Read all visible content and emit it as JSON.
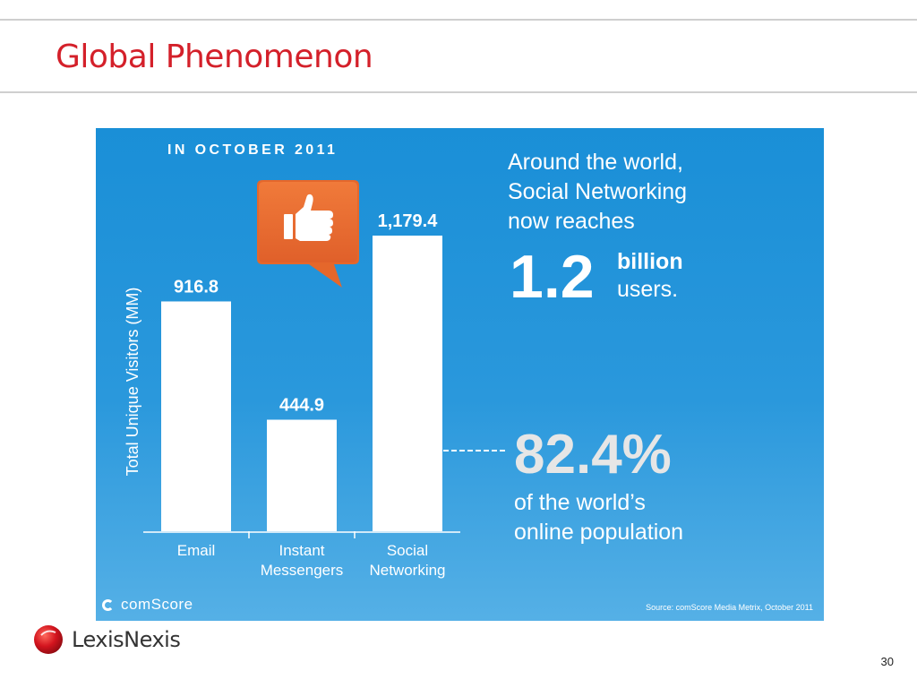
{
  "slide": {
    "title": "Global Phenomenon",
    "page_number": "30"
  },
  "infographic": {
    "heading": "IN OCTOBER 2011",
    "lead_lines": [
      "Around the world,",
      "Social Networking",
      "now reaches"
    ],
    "big_number": "1.2",
    "big_unit_1": "billion",
    "big_unit_2": "users.",
    "percentage": "82.4%",
    "tail_lines": [
      "of the world’s",
      "online population"
    ],
    "brand": "comScore",
    "source": "Source: comScore Media Metrix, October 2011",
    "thumb_icon": "thumbs-up-icon"
  },
  "footer": {
    "logo_text": "LexisNexis",
    "logo_icon": "lexisnexis-sphere-icon"
  },
  "colors": {
    "title": "#d4202a",
    "panel": "#1a8fd7",
    "bars": "#ffffff",
    "badge": "#e5672b"
  },
  "chart_data": {
    "type": "bar",
    "title": "",
    "ylabel": "Total Unique Visitors (MM)",
    "xlabel": "",
    "categories": [
      [
        "Email"
      ],
      [
        "Instant",
        "Messengers"
      ],
      [
        "Social",
        "Networking"
      ]
    ],
    "values": [
      916.8,
      444.9,
      1179.4
    ],
    "value_labels": [
      "916.8",
      "444.9",
      "1,179.4"
    ],
    "ylim": [
      0,
      1250
    ],
    "grid": false,
    "legend": "none"
  }
}
